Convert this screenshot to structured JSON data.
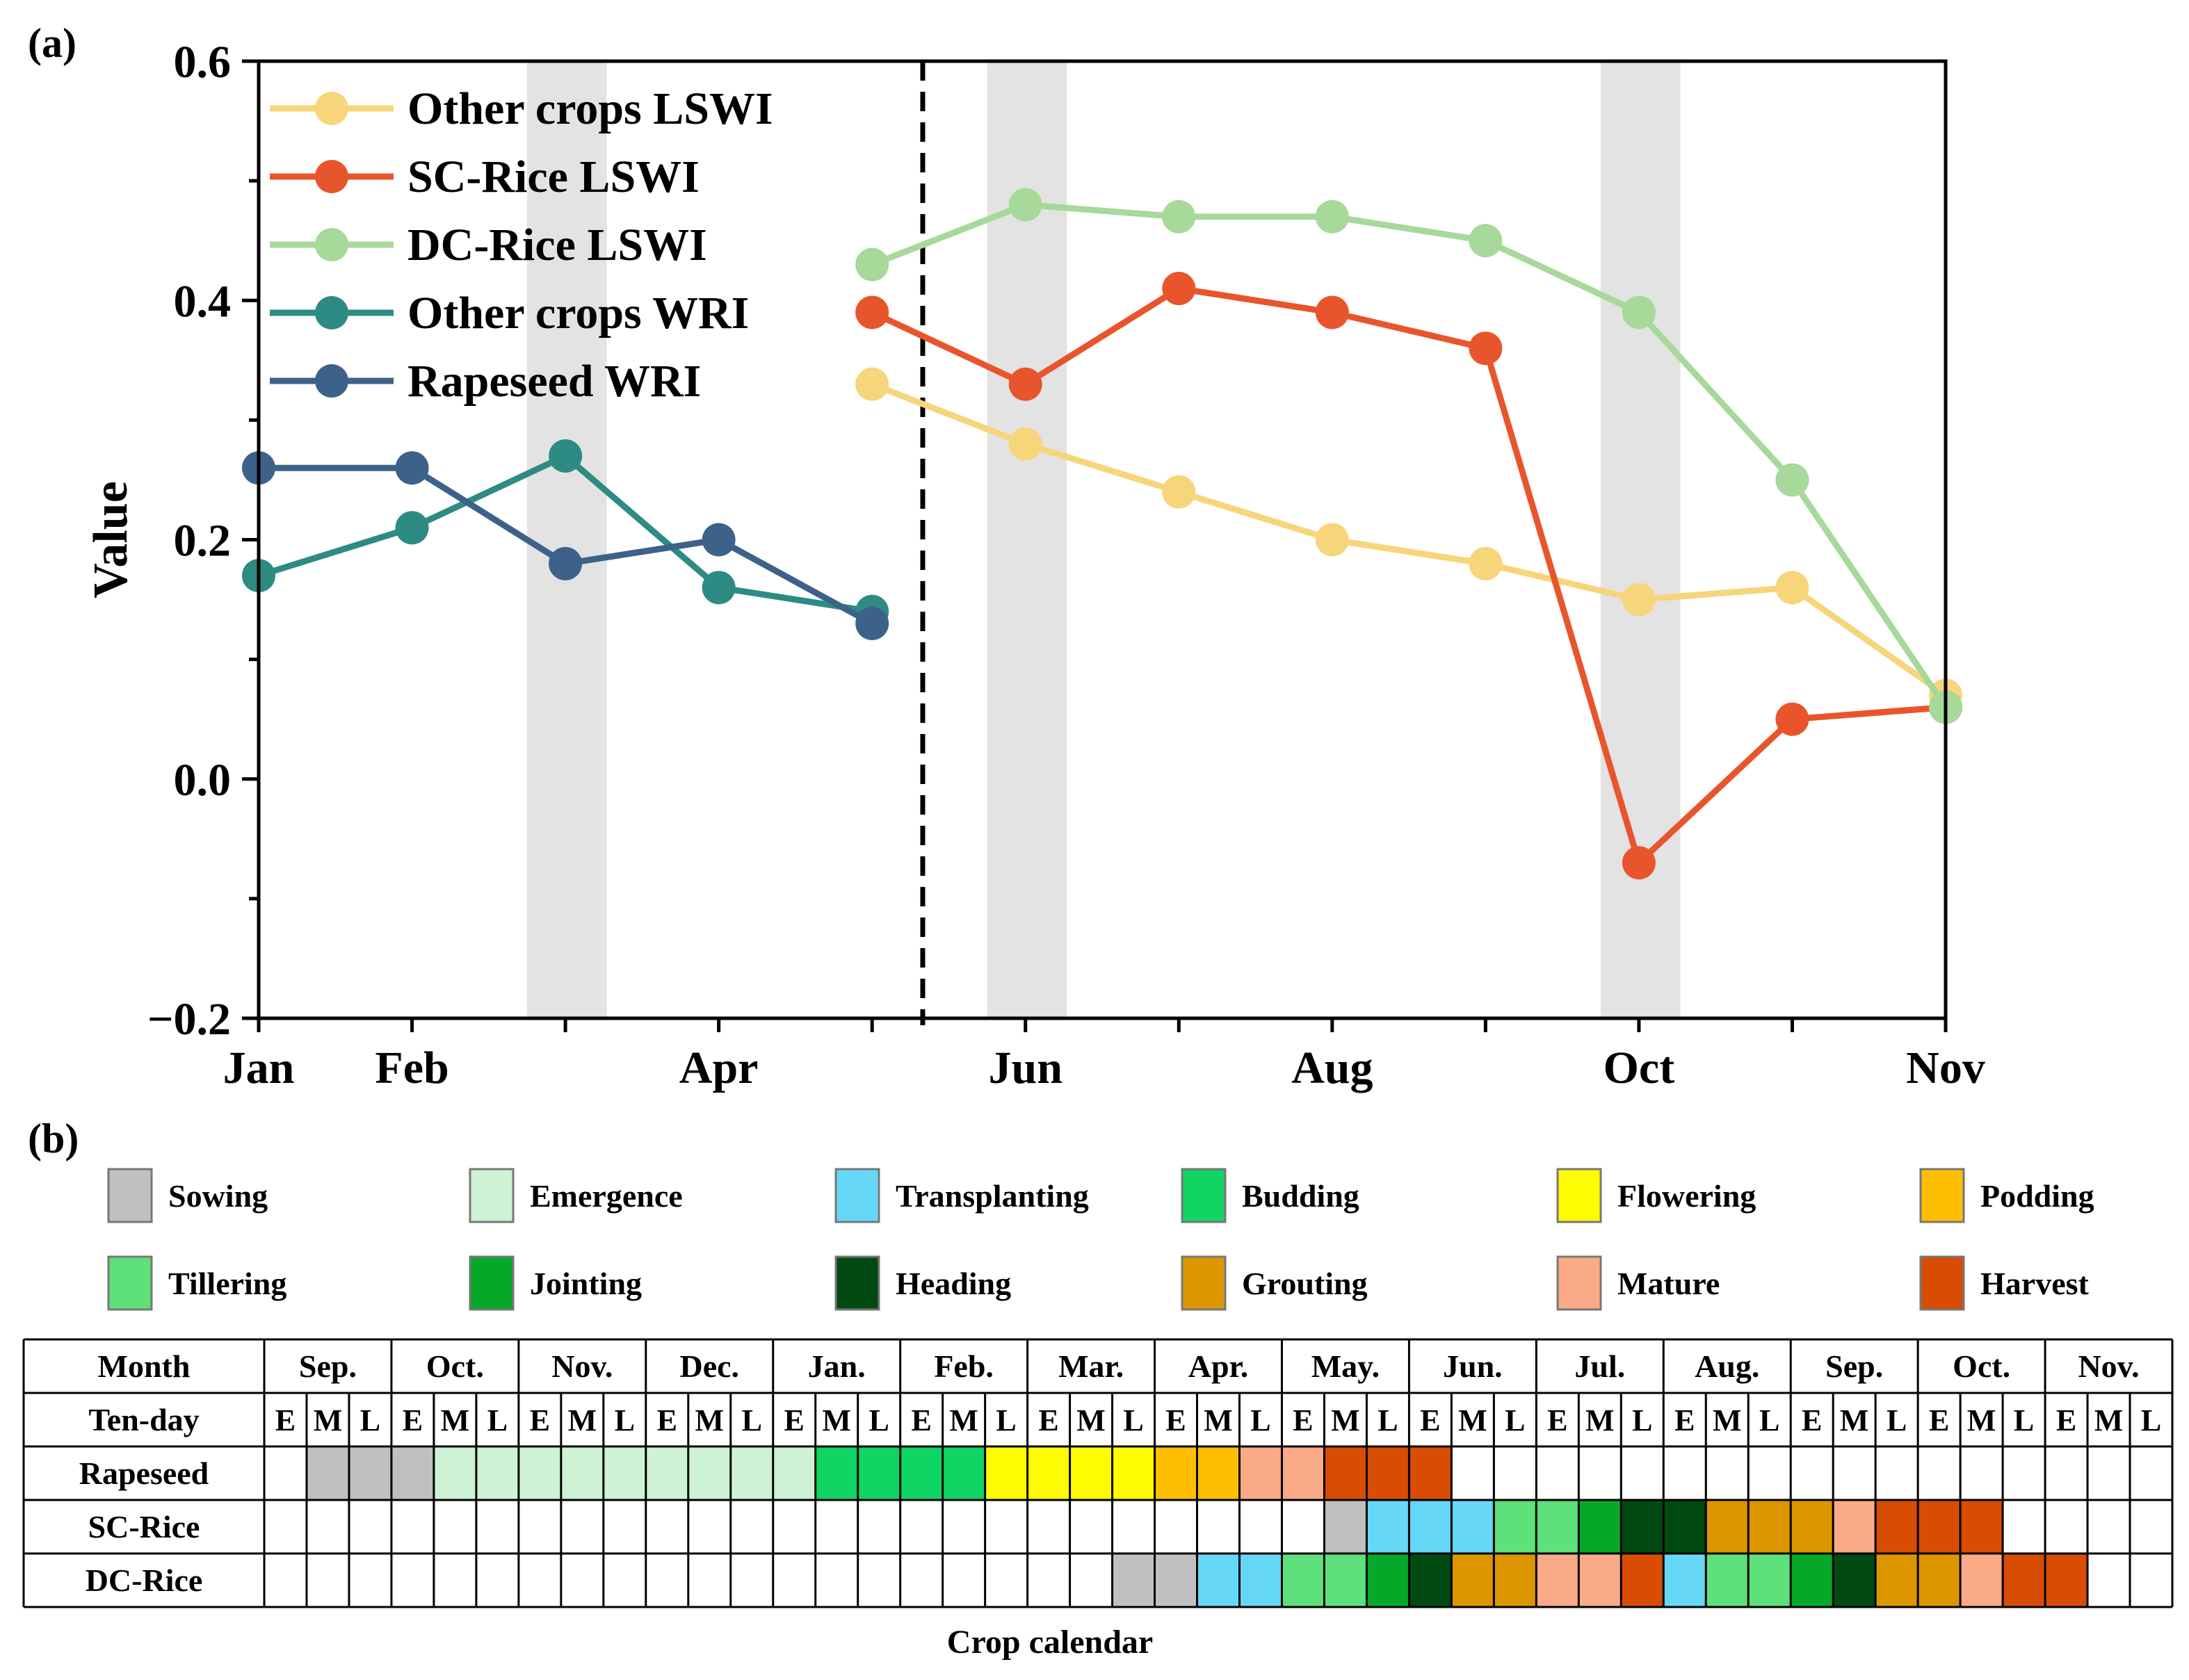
{
  "panel_a_label": "(a)",
  "panel_b_label": "(b)",
  "chart_data": [
    {
      "type": "line",
      "ylabel": "Value",
      "ylim": [
        -0.2,
        0.6
      ],
      "xlim": [
        1,
        12
      ],
      "yticks": [
        -0.2,
        0.0,
        0.2,
        0.4,
        0.6
      ],
      "ytick_labels": [
        "−0.2",
        "0.0",
        "0.2",
        "0.4",
        "0.6"
      ],
      "xticks": [
        1,
        2,
        4,
        6,
        8,
        10,
        12
      ],
      "xtick_labels": [
        "Jan",
        "Feb",
        "Apr",
        "Jun",
        "Aug",
        "Oct",
        "Nov"
      ],
      "divider_x": 5.33,
      "shaded_bands": [
        [
          2.75,
          3.27
        ],
        [
          5.75,
          6.27
        ],
        [
          9.75,
          10.27
        ]
      ],
      "legend_position": "top-left",
      "series": [
        {
          "name": "Other crops LSWI",
          "color": "#f7d57a",
          "x": [
            5,
            6,
            7,
            8,
            9,
            10,
            11,
            12
          ],
          "values": [
            0.33,
            0.28,
            0.24,
            0.2,
            0.18,
            0.15,
            0.16,
            0.07
          ]
        },
        {
          "name": "SC-Rice LSWI",
          "color": "#e8552c",
          "x": [
            5,
            6,
            7,
            8,
            9,
            10,
            11,
            12
          ],
          "values": [
            0.39,
            0.33,
            0.41,
            0.39,
            0.36,
            -0.07,
            0.05,
            0.06
          ]
        },
        {
          "name": "DC-Rice LSWI",
          "color": "#a6d99a",
          "x": [
            5,
            6,
            7,
            8,
            9,
            10,
            11,
            12
          ],
          "values": [
            0.43,
            0.48,
            0.47,
            0.47,
            0.45,
            0.39,
            0.25,
            0.06
          ]
        },
        {
          "name": "Other crops WRI",
          "color": "#2d8b84",
          "x": [
            1,
            2,
            3,
            4,
            5
          ],
          "values": [
            0.17,
            0.21,
            0.27,
            0.16,
            0.14
          ]
        },
        {
          "name": "Rapeseed WRI",
          "color": "#3d6289",
          "x": [
            1,
            2,
            3,
            4,
            5
          ],
          "values": [
            0.26,
            0.26,
            0.18,
            0.2,
            0.13
          ]
        }
      ]
    },
    {
      "type": "table",
      "title": "Crop calendar",
      "legend": [
        {
          "label": "Sowing",
          "color": "#c0c0c0"
        },
        {
          "label": "Emergence",
          "color": "#cdf2d4"
        },
        {
          "label": "Transplanting",
          "color": "#66d7f7"
        },
        {
          "label": "Budding",
          "color": "#10d463"
        },
        {
          "label": "Flowering",
          "color": "#fffb00"
        },
        {
          "label": "Podding",
          "color": "#ffbf00"
        },
        {
          "label": "Tillering",
          "color": "#5ee07b"
        },
        {
          "label": "Jointing",
          "color": "#06a829"
        },
        {
          "label": "Heading",
          "color": "#004a12"
        },
        {
          "label": "Grouting",
          "color": "#dd9600"
        },
        {
          "label": "Mature",
          "color": "#fbaa88"
        },
        {
          "label": "Harvest",
          "color": "#d94c04"
        }
      ],
      "header_month_label": "Month",
      "header_tenday_label": "Ten-day",
      "months": [
        "Sep.",
        "Oct.",
        "Nov.",
        "Dec.",
        "Jan.",
        "Feb.",
        "Mar.",
        "Apr.",
        "May.",
        "Jun.",
        "Jul.",
        "Aug.",
        "Sep.",
        "Oct.",
        "Nov."
      ],
      "tenday_labels": [
        "E",
        "M",
        "L"
      ],
      "rows": [
        {
          "name": "Rapeseed",
          "cells": [
            "",
            "Sowing",
            "Sowing",
            "Sowing",
            "Emergence",
            "Emergence",
            "Emergence",
            "Emergence",
            "Emergence",
            "Emergence",
            "Emergence",
            "Emergence",
            "Emergence",
            "Budding",
            "Budding",
            "Budding",
            "Budding",
            "Flowering",
            "Flowering",
            "Flowering",
            "Flowering",
            "Podding",
            "Podding",
            "Mature",
            "Mature",
            "Harvest",
            "Harvest",
            "Harvest",
            "",
            "",
            "",
            "",
            "",
            "",
            "",
            "",
            "",
            "",
            "",
            "",
            "",
            "",
            "",
            "",
            ""
          ]
        },
        {
          "name": "SC-Rice",
          "cells": [
            "",
            "",
            "",
            "",
            "",
            "",
            "",
            "",
            "",
            "",
            "",
            "",
            "",
            "",
            "",
            "",
            "",
            "",
            "",
            "",
            "",
            "",
            "",
            "",
            "",
            "Sowing",
            "Transplanting",
            "Transplanting",
            "Transplanting",
            "Tillering",
            "Tillering",
            "Jointing",
            "Heading",
            "Heading",
            "Grouting",
            "Grouting",
            "Grouting",
            "Mature",
            "Harvest",
            "Harvest",
            "Harvest",
            "",
            "",
            "",
            ""
          ]
        },
        {
          "name": "DC-Rice",
          "cells": [
            "",
            "",
            "",
            "",
            "",
            "",
            "",
            "",
            "",
            "",
            "",
            "",
            "",
            "",
            "",
            "",
            "",
            "",
            "",
            "",
            "Sowing",
            "Sowing",
            "Transplanting",
            "Transplanting",
            "Tillering",
            "Tillering",
            "Jointing",
            "Heading",
            "Grouting",
            "Grouting",
            "Mature",
            "Mature",
            "Harvest",
            "Transplanting",
            "Tillering",
            "Tillering",
            "Jointing",
            "Heading",
            "Grouting",
            "Grouting",
            "Mature",
            "Harvest",
            "Harvest",
            "",
            ""
          ]
        }
      ]
    }
  ]
}
